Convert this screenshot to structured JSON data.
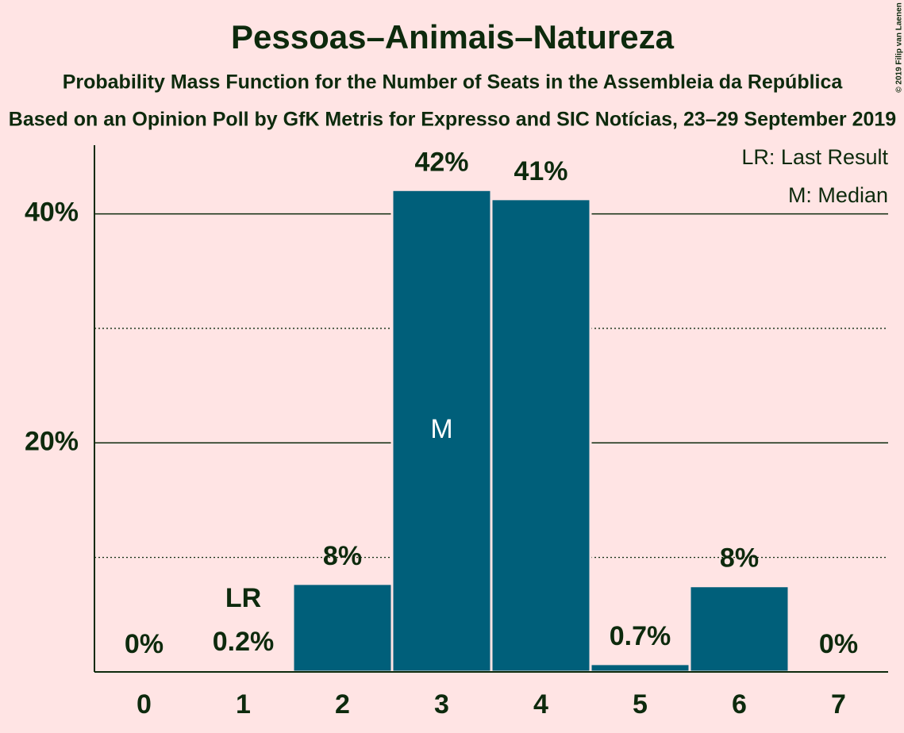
{
  "chart_data": {
    "type": "bar",
    "title": "Pessoas–Animais–Natureza",
    "subtitle": "Probability Mass Function for the Number of Seats in the Assembleia da República",
    "caption": "Based on an Opinion Poll by GfK Metris for Expresso and SIC Notícias, 23–29 September 2019",
    "credit": "© 2019 Filip van Laenen",
    "categories": [
      "0",
      "1",
      "2",
      "3",
      "4",
      "5",
      "6",
      "7"
    ],
    "values": [
      0,
      0.2,
      7.7,
      42.1,
      41.3,
      0.7,
      7.5,
      0
    ],
    "value_labels": [
      "0%",
      "0.2%",
      "8%",
      "42%",
      "41%",
      "0.7%",
      "8%",
      "0%"
    ],
    "color": "#005f7a",
    "ylim": [
      0,
      46
    ],
    "yticks": [
      {
        "value": 20,
        "label": "20%"
      },
      {
        "value": 40,
        "label": "40%"
      }
    ],
    "minor_yticks": [
      10,
      30
    ],
    "grid": true,
    "annotations": [
      {
        "label": "LR",
        "x": 1
      },
      {
        "label": "M",
        "x": 3
      }
    ],
    "legend": [
      "LR: Last Result",
      "M: Median"
    ],
    "legend_position": "top-right"
  }
}
